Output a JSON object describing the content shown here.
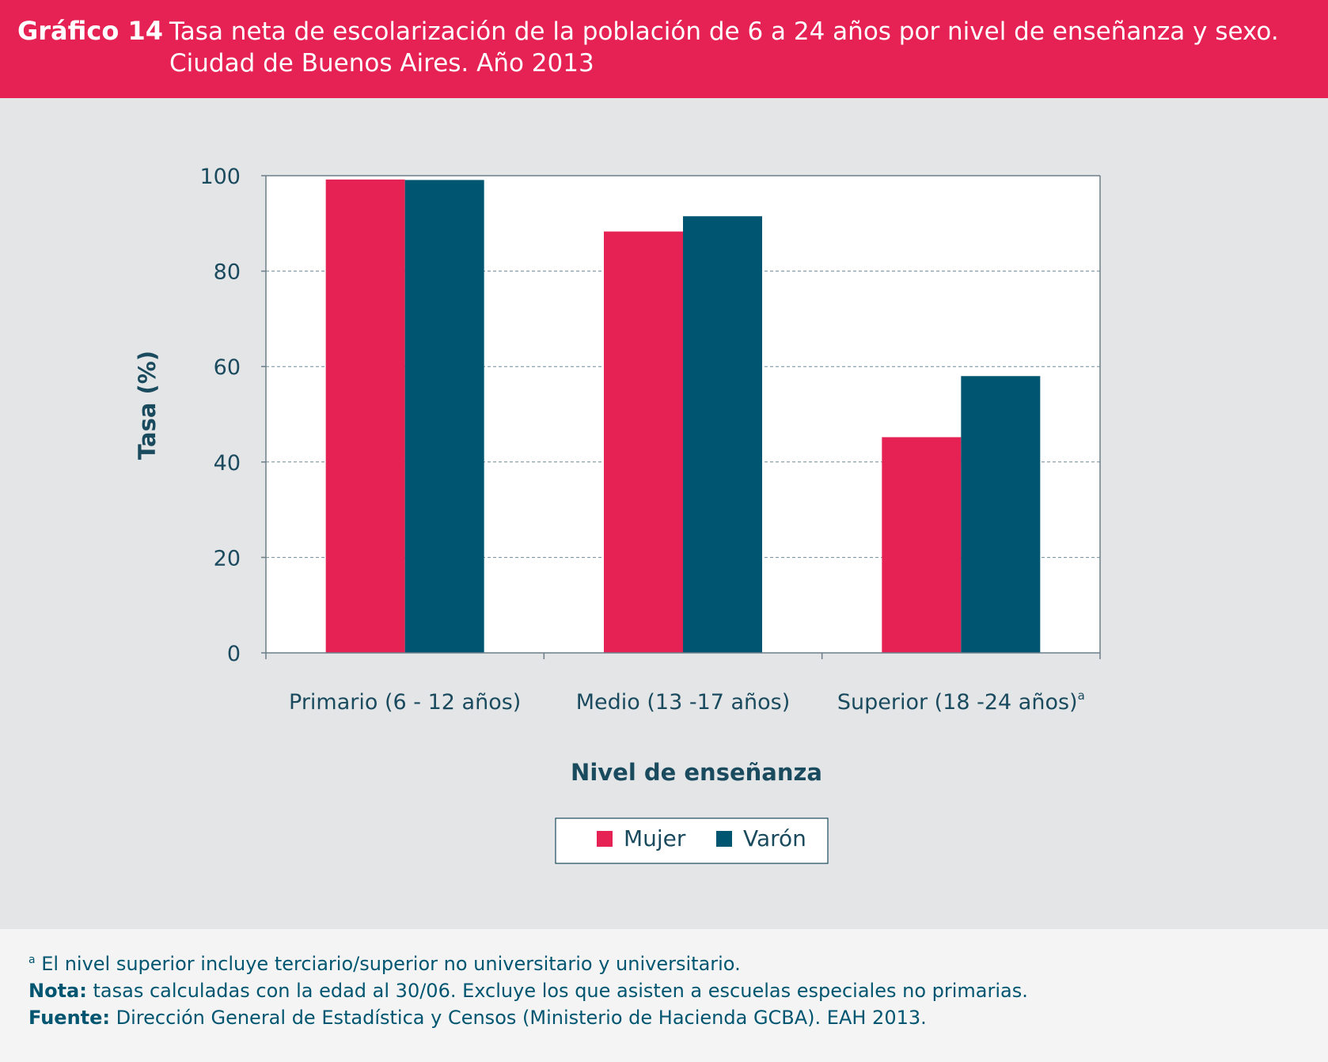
{
  "header": {
    "number": "Gráfico 14",
    "title_line1": "Tasa neta de escolarización de la población de 6 a 24 años por nivel de enseñanza y sexo.",
    "title_line2": "Ciudad de Buenos Aires. Año 2013"
  },
  "colors": {
    "accent": "#e62254",
    "dark": "#005570",
    "text": "#1a4a5e"
  },
  "chart_data": {
    "type": "bar",
    "title": "Tasa neta de escolarización de la población de 6 a 24 años por nivel de enseñanza y sexo. Ciudad de Buenos Aires. Año 2013",
    "categories": [
      "Primario (6 - 12 años)",
      "Medio (13 -17 años)",
      "Superior (18 -24 años)"
    ],
    "category_superscripts": [
      "",
      "",
      "a"
    ],
    "series": [
      {
        "name": "Mujer",
        "color": "#e62254",
        "values": [
          99.2,
          88.3,
          45.2
        ]
      },
      {
        "name": "Varón",
        "color": "#005570",
        "values": [
          99.1,
          91.5,
          58.0
        ]
      }
    ],
    "xlabel": "Nivel de enseñanza",
    "ylabel": "Tasa (%)",
    "ylim": [
      0,
      100
    ],
    "yticks": [
      0,
      20,
      40,
      60,
      80,
      100
    ],
    "grid": true,
    "legend_position": "bottom-center"
  },
  "notes": {
    "footnote_mark": "a",
    "footnote": "El nivel superior incluye terciario/superior no universitario y universitario.",
    "nota_label": "Nota:",
    "nota": "tasas calculadas con la edad al 30/06. Excluye los que asisten a escuelas especiales no primarias.",
    "fuente_label": "Fuente:",
    "fuente": "Dirección General de Estadística y Censos (Ministerio de Hacienda GCBA). EAH 2013."
  }
}
